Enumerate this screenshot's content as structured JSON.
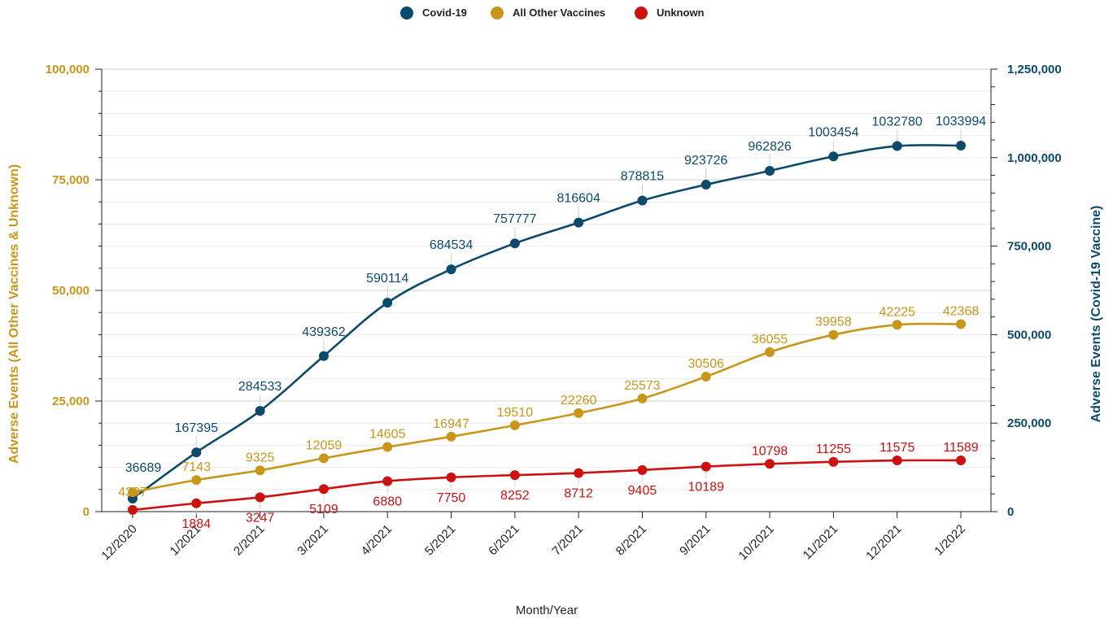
{
  "chart_data": {
    "type": "line",
    "categories": [
      "12/2020",
      "1/2021",
      "2/2021",
      "3/2021",
      "4/2021",
      "5/2021",
      "6/2021",
      "7/2021",
      "8/2021",
      "9/2021",
      "10/2021",
      "11/2021",
      "12/2021",
      "1/2022"
    ],
    "xlabel": "Month/Year",
    "ylabel_left": "Adverse Events (All Other Vaccines & Unknown)",
    "ylabel_right": "Adverse Events (Covid-19 Vaccine)",
    "ylim_left": [
      0,
      100000
    ],
    "ylim_right": [
      0,
      1250000
    ],
    "yticks_left": [
      "0",
      "25,000",
      "50,000",
      "75,000",
      "100,000"
    ],
    "yticks_right": [
      "0",
      "250,000",
      "500,000",
      "750,000",
      "1,000,000",
      "1,250,000"
    ],
    "grid": true,
    "legend_position": "top-center",
    "colors": {
      "covid": "#0b4a6b",
      "other": "#c8961a",
      "unknown": "#cc1111",
      "left_axis_text": "#c8961a",
      "right_axis_text": "#0b4a6b"
    },
    "series": [
      {
        "name": "Covid-19",
        "axis": "right",
        "color": "#0b4a6b",
        "values": [
          36689,
          167395,
          284533,
          439362,
          590114,
          684534,
          757777,
          816604,
          878815,
          923726,
          962826,
          1003454,
          1032780,
          1033994
        ]
      },
      {
        "name": "All Other Vaccines",
        "axis": "left",
        "color": "#c8961a",
        "values": [
          4387,
          7143,
          9325,
          12059,
          14605,
          16947,
          19510,
          22260,
          25573,
          30506,
          36055,
          39958,
          42225,
          42368
        ]
      },
      {
        "name": "Unknown",
        "axis": "left",
        "color": "#cc1111",
        "values": [
          381,
          1884,
          3247,
          5109,
          6880,
          7750,
          8252,
          8712,
          9405,
          10189,
          10798,
          11255,
          11575,
          11589
        ]
      }
    ],
    "data_labels": {
      "Covid-19": [
        "36689",
        "167395",
        "284533",
        "439362",
        "590114",
        "684534",
        "757777",
        "816604",
        "878815",
        "923726",
        "962826",
        "1003454",
        "1032780",
        "1033994"
      ],
      "All Other Vaccines": [
        "4387",
        "7143",
        "9325",
        "12059",
        "14605",
        "16947",
        "19510",
        "22260",
        "25573",
        "30506",
        "36055",
        "39958",
        "42225",
        "42368"
      ],
      "Unknown": [
        "",
        "1884",
        "3247",
        "5109",
        "6880",
        "7750",
        "8252",
        "8712",
        "9405",
        "10189",
        "10798",
        "11255",
        "11575",
        "11589"
      ]
    }
  }
}
